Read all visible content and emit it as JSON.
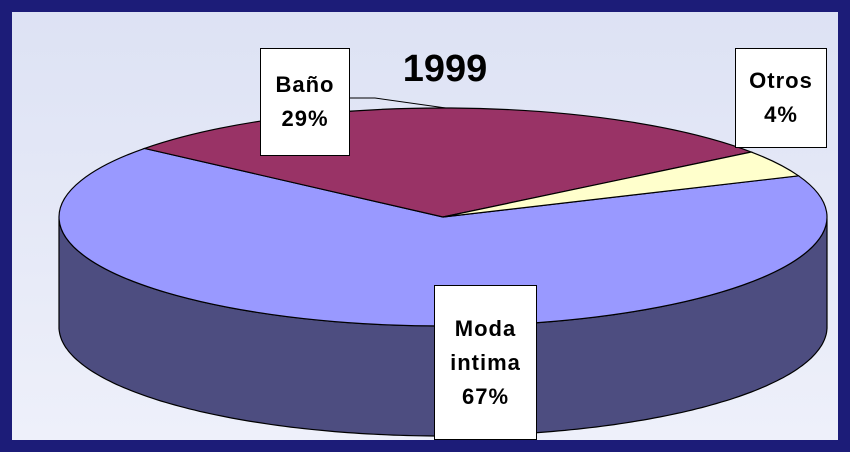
{
  "chart_data": {
    "type": "pie",
    "title": "1999",
    "categories": [
      "Moda intima",
      "Baño",
      "Otros"
    ],
    "values": [
      67,
      29,
      4
    ],
    "value_labels": [
      "67%",
      "29%",
      "4%"
    ],
    "colors": [
      "#9999ff",
      "#993366",
      "#ffffcc"
    ]
  }
}
